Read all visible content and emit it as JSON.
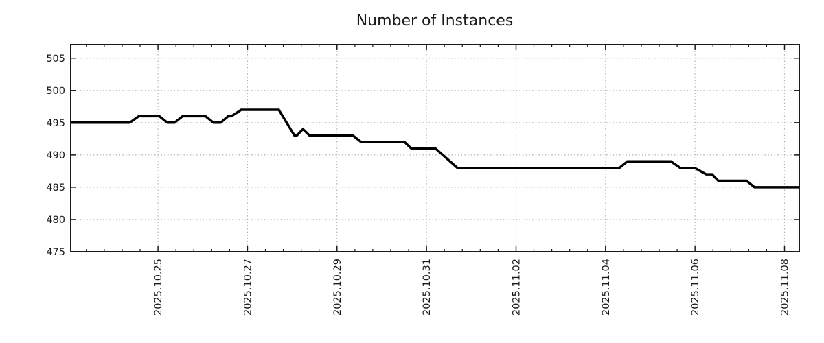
{
  "chart_data": {
    "type": "line",
    "title": "Number of Instances",
    "series": [
      {
        "name": "instances",
        "color": "#000000",
        "line_width": 3.5,
        "points_t_days_from_2025_10_25": [
          [
            -1.95,
            495
          ],
          [
            -0.63,
            495
          ],
          [
            -0.43,
            496
          ],
          [
            0.03,
            496
          ],
          [
            0.21,
            495
          ],
          [
            0.37,
            495
          ],
          [
            0.55,
            496
          ],
          [
            1.06,
            496
          ],
          [
            1.24,
            495
          ],
          [
            1.4,
            495
          ],
          [
            1.57,
            496
          ],
          [
            1.64,
            496
          ],
          [
            1.86,
            497
          ],
          [
            2.7,
            497
          ],
          [
            3.05,
            493
          ],
          [
            3.1,
            493
          ],
          [
            3.24,
            494
          ],
          [
            3.39,
            493
          ],
          [
            4.36,
            493
          ],
          [
            4.54,
            492
          ],
          [
            5.51,
            492
          ],
          [
            5.66,
            491
          ],
          [
            6.2,
            491
          ],
          [
            6.69,
            488
          ],
          [
            10.31,
            488
          ],
          [
            10.49,
            489
          ],
          [
            11.46,
            489
          ],
          [
            11.67,
            488
          ],
          [
            11.99,
            488
          ],
          [
            12.25,
            487
          ],
          [
            12.38,
            487
          ],
          [
            12.52,
            486
          ],
          [
            13.15,
            486
          ],
          [
            13.33,
            485
          ],
          [
            14.33,
            485
          ]
        ]
      }
    ],
    "x_axis": {
      "unit": "days relative to 2025.10.25",
      "range": [
        -1.95,
        14.33
      ],
      "major_ticks": [
        {
          "t": 0,
          "label": "2025.10.25"
        },
        {
          "t": 2,
          "label": "2025.10.27"
        },
        {
          "t": 4,
          "label": "2025.10.29"
        },
        {
          "t": 6,
          "label": "2025.10.31"
        },
        {
          "t": 8,
          "label": "2025.11.02"
        },
        {
          "t": 10,
          "label": "2025.11.04"
        },
        {
          "t": 12,
          "label": "2025.11.06"
        },
        {
          "t": 14,
          "label": "2025.11.08"
        }
      ],
      "minor_tick_step": 0.4,
      "label_rotation_deg": -90
    },
    "y_axis": {
      "range": [
        475,
        507.1
      ],
      "ticks": [
        475,
        480,
        485,
        490,
        495,
        500,
        505
      ]
    },
    "grid": {
      "show": true,
      "style": "dotted",
      "color": "#b0b0b0"
    },
    "legend": {
      "show": false
    },
    "colors": {
      "line": "#000000",
      "border": "#1a1a1a",
      "text": "#1a1a1a",
      "background": "#ffffff"
    }
  }
}
